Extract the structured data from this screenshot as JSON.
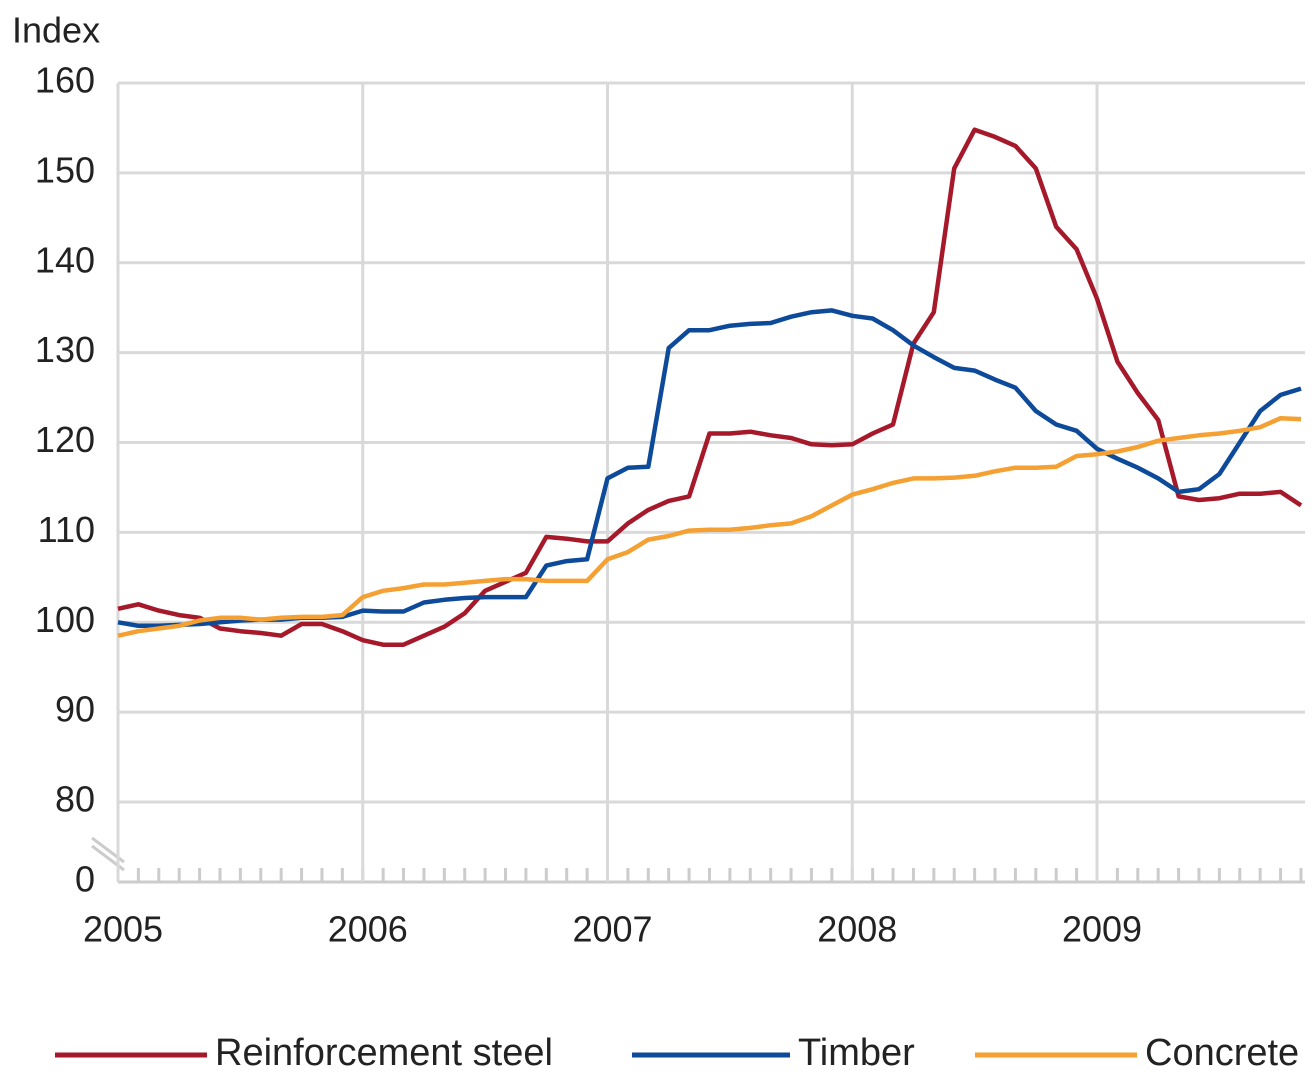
{
  "chart_data": {
    "type": "line",
    "y_axis_label": "Index",
    "categories": [
      "2005",
      null,
      null,
      null,
      null,
      null,
      null,
      null,
      null,
      null,
      null,
      null,
      "2006",
      null,
      null,
      null,
      null,
      null,
      null,
      null,
      null,
      null,
      null,
      null,
      "2007",
      null,
      null,
      null,
      null,
      null,
      null,
      null,
      null,
      null,
      null,
      null,
      "2008",
      null,
      null,
      null,
      null,
      null,
      null,
      null,
      null,
      null,
      null,
      null,
      "2009",
      null,
      null,
      null,
      null,
      null,
      null,
      null,
      null,
      null,
      null
    ],
    "series": [
      {
        "name": "Reinforcement steel",
        "color": "#a5192a",
        "values": [
          101.5,
          102,
          101.3,
          100.8,
          100.5,
          99.3,
          99,
          98.8,
          98.5,
          99.8,
          99.8,
          99,
          98,
          97.5,
          97.5,
          98.5,
          99.5,
          101,
          103.5,
          104.5,
          105.5,
          109.5,
          109.3,
          109,
          109,
          111,
          112.5,
          113.5,
          114,
          121,
          121,
          121.2,
          120.8,
          120.5,
          119.8,
          119.7,
          119.8,
          121,
          122,
          131,
          134.5,
          150.5,
          154.8,
          154,
          153,
          150.5,
          144,
          141.5,
          136,
          129,
          125.5,
          122.5,
          114,
          113.6,
          113.8,
          114.3,
          114.3,
          114.5,
          113
        ]
      },
      {
        "name": "Timber",
        "color": "#0d4a9a",
        "values": [
          100,
          99.6,
          99.6,
          99.7,
          99.8,
          100,
          100.2,
          100.3,
          100.3,
          100.5,
          100.5,
          100.6,
          101.3,
          101.2,
          101.2,
          102.2,
          102.5,
          102.7,
          102.8,
          102.8,
          102.8,
          106.3,
          106.8,
          107,
          116,
          117.2,
          117.3,
          130.5,
          132.5,
          132.5,
          133,
          133.2,
          133.3,
          134,
          134.5,
          134.7,
          134.1,
          133.8,
          132.5,
          130.8,
          129.5,
          128.3,
          128,
          127,
          126.1,
          123.5,
          122,
          121.3,
          119.3,
          118.2,
          117.2,
          116,
          114.5,
          114.8,
          116.5,
          120,
          123.5,
          125.3,
          126
        ]
      },
      {
        "name": "Concrete",
        "color": "#f5a032",
        "values": [
          98.5,
          99,
          99.3,
          99.6,
          100.2,
          100.5,
          100.5,
          100.3,
          100.5,
          100.6,
          100.6,
          100.8,
          102.8,
          103.5,
          103.8,
          104.2,
          104.2,
          104.4,
          104.6,
          104.8,
          104.8,
          104.6,
          104.6,
          104.6,
          107,
          107.8,
          109.2,
          109.6,
          110.2,
          110.3,
          110.3,
          110.5,
          110.8,
          111,
          111.8,
          113,
          114.2,
          114.8,
          115.5,
          116,
          116,
          116.1,
          116.3,
          116.8,
          117.2,
          117.2,
          117.3,
          118.5,
          118.7,
          119,
          119.5,
          120.2,
          120.5,
          120.8,
          121,
          121.3,
          121.7,
          122.7,
          122.6
        ]
      }
    ],
    "ylim": [
      0,
      160
    ],
    "axis_break": [
      0,
      80
    ],
    "yticks": [
      0,
      80,
      90,
      100,
      110,
      120,
      130,
      140,
      150,
      160
    ],
    "grid": true,
    "legend": "bottom"
  }
}
